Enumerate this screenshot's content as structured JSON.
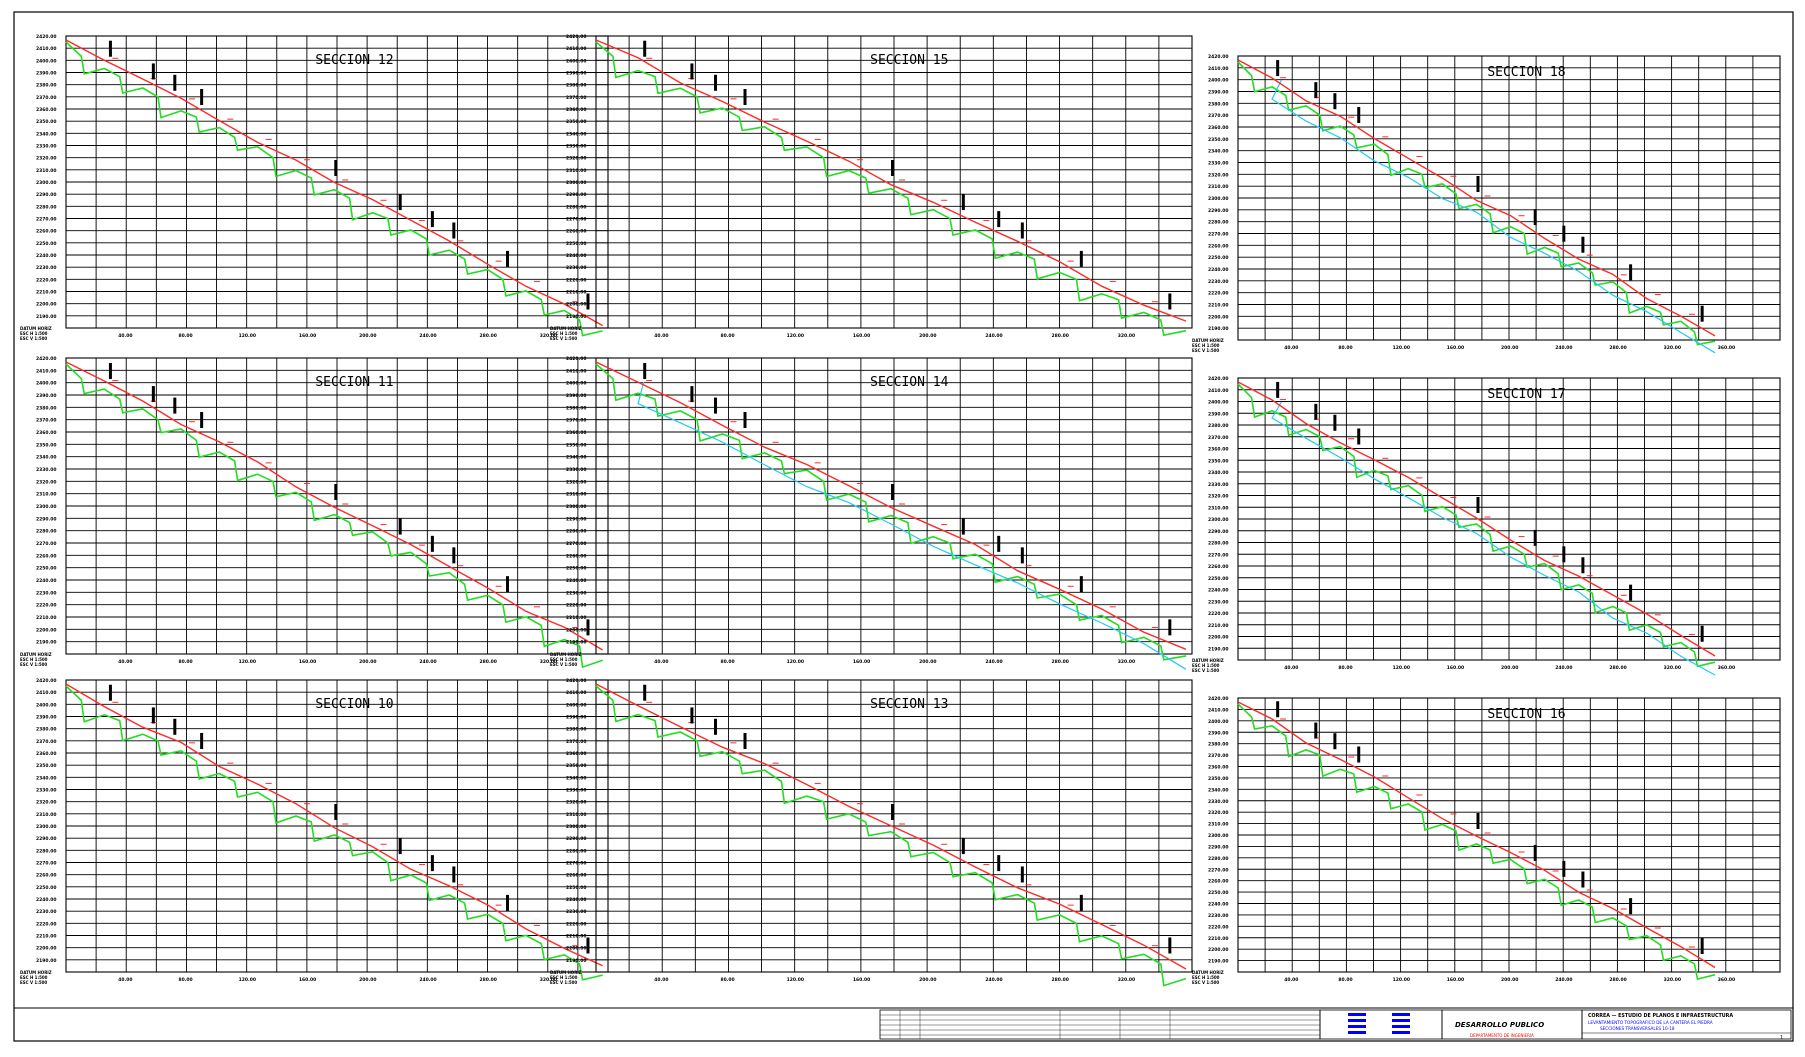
{
  "colors": {
    "background": "#ffffff",
    "grid": "#000000",
    "terrain_line": "#ff2a2a",
    "ground_line": "#22dd22",
    "water_line": "#22ccee",
    "title_block_blue": "#0000ff",
    "title_block_red": "#ff0000"
  },
  "panels": [
    {
      "title": "SECCION 12",
      "x_ticks": [
        "40.00",
        "80.00",
        "120.00",
        "160.00",
        "200.00",
        "240.00",
        "280.00",
        "320.00"
      ],
      "y_ticks": [
        "2420.00",
        "2410.00",
        "2400.00",
        "2390.00",
        "2380.00",
        "2370.00",
        "2360.00",
        "2350.00",
        "2340.00",
        "2330.00",
        "2320.00",
        "2310.00",
        "2300.00",
        "2290.00",
        "2280.00",
        "2270.00",
        "2260.00",
        "2250.00",
        "2240.00",
        "2230.00",
        "2220.00",
        "2210.00",
        "2200.00",
        "2190.00"
      ],
      "corner_label": [
        "DATUM HORIZ",
        "ESC H 1:500",
        "ESC V 1:500"
      ],
      "has_water": false
    },
    {
      "title": "SECCION 15",
      "x_ticks": [
        "40.00",
        "80.00",
        "120.00",
        "160.00",
        "200.00",
        "240.00",
        "280.00",
        "320.00"
      ],
      "y_ticks": [
        "2420.00",
        "2410.00",
        "2400.00",
        "2390.00",
        "2380.00",
        "2370.00",
        "2360.00",
        "2350.00",
        "2340.00",
        "2330.00",
        "2320.00",
        "2310.00",
        "2300.00",
        "2290.00",
        "2280.00",
        "2270.00",
        "2260.00",
        "2250.00",
        "2240.00",
        "2230.00",
        "2220.00",
        "2210.00",
        "2200.00",
        "2190.00"
      ],
      "corner_label": [
        "DATUM HORIZ",
        "ESC H 1:500",
        "ESC V 1:500"
      ],
      "has_water": false
    },
    {
      "title": "SECCION 18",
      "x_ticks": [
        "40.00",
        "80.00",
        "120.00",
        "160.00",
        "200.00",
        "240.00",
        "280.00",
        "320.00",
        "360.00"
      ],
      "y_ticks": [
        "2420.00",
        "2410.00",
        "2400.00",
        "2390.00",
        "2380.00",
        "2370.00",
        "2360.00",
        "2350.00",
        "2340.00",
        "2330.00",
        "2320.00",
        "2310.00",
        "2300.00",
        "2290.00",
        "2280.00",
        "2270.00",
        "2260.00",
        "2250.00",
        "2240.00",
        "2230.00",
        "2220.00",
        "2210.00",
        "2200.00",
        "2190.00"
      ],
      "corner_label": [
        "DATUM HORIZ",
        "ESC H 1:500",
        "ESC V 1:500"
      ],
      "has_water": true
    },
    {
      "title": "SECCION 11",
      "x_ticks": [
        "40.00",
        "80.00",
        "120.00",
        "160.00",
        "200.00",
        "240.00",
        "280.00",
        "320.00"
      ],
      "y_ticks": [
        "2420.00",
        "2410.00",
        "2400.00",
        "2390.00",
        "2380.00",
        "2370.00",
        "2360.00",
        "2350.00",
        "2340.00",
        "2330.00",
        "2320.00",
        "2310.00",
        "2300.00",
        "2290.00",
        "2280.00",
        "2270.00",
        "2260.00",
        "2250.00",
        "2240.00",
        "2230.00",
        "2220.00",
        "2210.00",
        "2200.00",
        "2190.00"
      ],
      "corner_label": [
        "DATUM HORIZ",
        "ESC H 1:500",
        "ESC V 1:500"
      ],
      "has_water": false
    },
    {
      "title": "SECCION 14",
      "x_ticks": [
        "40.00",
        "80.00",
        "120.00",
        "160.00",
        "200.00",
        "240.00",
        "280.00",
        "320.00"
      ],
      "y_ticks": [
        "2420.00",
        "2410.00",
        "2400.00",
        "2390.00",
        "2380.00",
        "2370.00",
        "2360.00",
        "2350.00",
        "2340.00",
        "2330.00",
        "2320.00",
        "2310.00",
        "2300.00",
        "2290.00",
        "2280.00",
        "2270.00",
        "2260.00",
        "2250.00",
        "2240.00",
        "2230.00",
        "2220.00",
        "2210.00",
        "2200.00",
        "2190.00"
      ],
      "corner_label": [
        "DATUM HORIZ",
        "ESC H 1:500",
        "ESC V 1:500"
      ],
      "has_water": true
    },
    {
      "title": "SECCION 17",
      "x_ticks": [
        "40.00",
        "80.00",
        "120.00",
        "160.00",
        "200.00",
        "240.00",
        "280.00",
        "320.00",
        "360.00"
      ],
      "y_ticks": [
        "2420.00",
        "2410.00",
        "2400.00",
        "2390.00",
        "2380.00",
        "2370.00",
        "2360.00",
        "2350.00",
        "2340.00",
        "2330.00",
        "2320.00",
        "2310.00",
        "2300.00",
        "2290.00",
        "2280.00",
        "2270.00",
        "2260.00",
        "2250.00",
        "2240.00",
        "2230.00",
        "2220.00",
        "2210.00",
        "2200.00",
        "2190.00"
      ],
      "corner_label": [
        "DATUM HORIZ",
        "ESC H 1:500",
        "ESC V 1:500"
      ],
      "has_water": true
    },
    {
      "title": "SECCION 10",
      "x_ticks": [
        "40.00",
        "80.00",
        "120.00",
        "160.00",
        "200.00",
        "240.00",
        "280.00",
        "320.00"
      ],
      "y_ticks": [
        "2420.00",
        "2410.00",
        "2400.00",
        "2390.00",
        "2380.00",
        "2370.00",
        "2360.00",
        "2350.00",
        "2340.00",
        "2330.00",
        "2320.00",
        "2310.00",
        "2300.00",
        "2290.00",
        "2280.00",
        "2270.00",
        "2260.00",
        "2250.00",
        "2240.00",
        "2230.00",
        "2220.00",
        "2210.00",
        "2200.00",
        "2190.00"
      ],
      "corner_label": [
        "DATUM HORIZ",
        "ESC H 1:500",
        "ESC V 1:500"
      ],
      "has_water": false
    },
    {
      "title": "SECCION 13",
      "x_ticks": [
        "40.00",
        "80.00",
        "120.00",
        "160.00",
        "200.00",
        "240.00",
        "280.00",
        "320.00"
      ],
      "y_ticks": [
        "2420.00",
        "2410.00",
        "2400.00",
        "2390.00",
        "2380.00",
        "2370.00",
        "2360.00",
        "2350.00",
        "2340.00",
        "2330.00",
        "2320.00",
        "2310.00",
        "2300.00",
        "2290.00",
        "2280.00",
        "2270.00",
        "2260.00",
        "2250.00",
        "2240.00",
        "2230.00",
        "2220.00",
        "2210.00",
        "2200.00",
        "2190.00"
      ],
      "corner_label": [
        "DATUM HORIZ",
        "ESC H 1:500",
        "ESC V 1:500"
      ],
      "has_water": false
    },
    {
      "title": "SECCION 16",
      "x_ticks": [
        "40.00",
        "80.00",
        "120.00",
        "160.00",
        "200.00",
        "240.00",
        "280.00",
        "320.00",
        "360.00"
      ],
      "y_ticks": [
        "2420.00",
        "2410.00",
        "2400.00",
        "2390.00",
        "2380.00",
        "2370.00",
        "2360.00",
        "2350.00",
        "2340.00",
        "2330.00",
        "2320.00",
        "2310.00",
        "2300.00",
        "2290.00",
        "2280.00",
        "2270.00",
        "2260.00",
        "2250.00",
        "2240.00",
        "2230.00",
        "2220.00",
        "2210.00",
        "2200.00",
        "2190.00"
      ],
      "corner_label": [
        "DATUM HORIZ",
        "ESC H 1:500",
        "ESC V 1:500"
      ],
      "has_water": false
    }
  ],
  "title_block": {
    "company_line1": "CORREA — ESTUDIO DE PLANOS E INFRAESTRUCTURA",
    "company_line2": "LEVANTAMIENTO TOPOGRAFICO DE LA CANTERA EL PIEDRA",
    "company_line3": "SECCIONES TRANSVERSALES 10-18",
    "logo_text": "DESARROLLO PUBLICO",
    "logo_sub": "DEPARTAMENTO DE INGENIERIA",
    "sheet_no": "1"
  }
}
